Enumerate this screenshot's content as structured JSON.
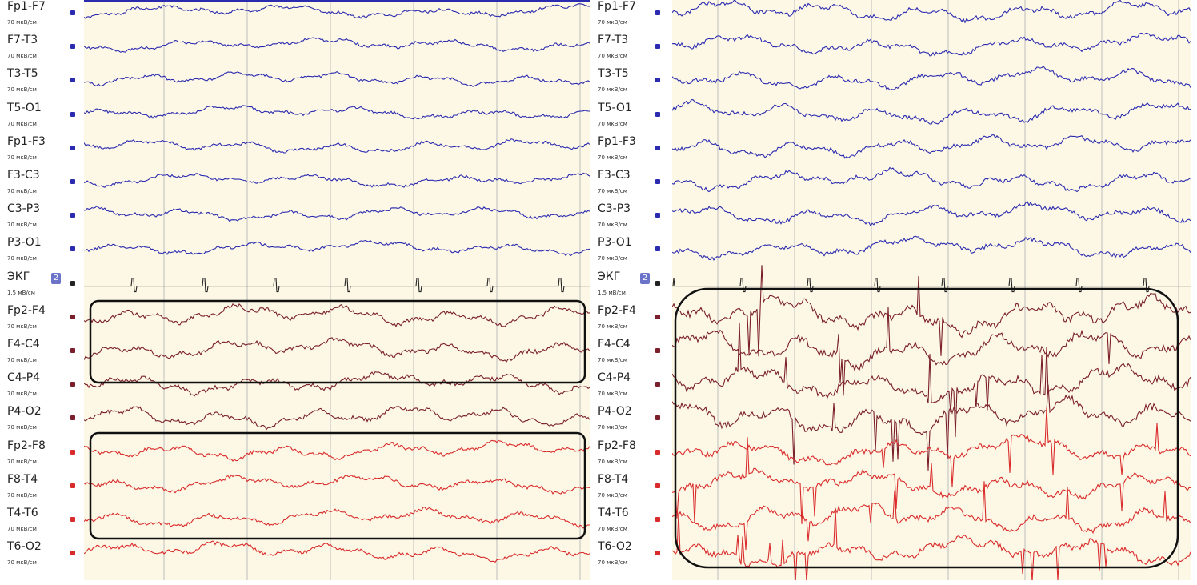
{
  "panels": [
    {
      "id": "left",
      "montage_badge": "2",
      "channels": [
        {
          "name": "Fp1-F7",
          "scale": "70 мкВ/см",
          "group": "left"
        },
        {
          "name": "F7-T3",
          "scale": "70 мкВ/см",
          "group": "left"
        },
        {
          "name": "T3-T5",
          "scale": "70 мкВ/см",
          "group": "left"
        },
        {
          "name": "T5-O1",
          "scale": "70 мкВ/см",
          "group": "left"
        },
        {
          "name": "Fp1-F3",
          "scale": "70 мкВ/см",
          "group": "left"
        },
        {
          "name": "F3-C3",
          "scale": "70 мкВ/см",
          "group": "left"
        },
        {
          "name": "C3-P3",
          "scale": "70 мкВ/см",
          "group": "left"
        },
        {
          "name": "P3-O1",
          "scale": "70 мкВ/см",
          "group": "left"
        },
        {
          "name": "ЭКГ",
          "scale": "1.5 мВ/см",
          "group": "ecg"
        },
        {
          "name": "Fp2-F4",
          "scale": "70 мкВ/см",
          "group": "right-para"
        },
        {
          "name": "F4-C4",
          "scale": "70 мкВ/см",
          "group": "right-para"
        },
        {
          "name": "C4-P4",
          "scale": "70 мкВ/см",
          "group": "right-para"
        },
        {
          "name": "P4-O2",
          "scale": "70 мкВ/см",
          "group": "right-para"
        },
        {
          "name": "Fp2-F8",
          "scale": "70 мкВ/см",
          "group": "right-temp"
        },
        {
          "name": "F8-T4",
          "scale": "70 мкВ/см",
          "group": "right-temp"
        },
        {
          "name": "T4-T6",
          "scale": "70 мкВ/см",
          "group": "right-temp"
        },
        {
          "name": "T6-O2",
          "scale": "70 мкВ/см",
          "group": "right-temp"
        }
      ]
    },
    {
      "id": "right",
      "montage_badge": "2",
      "channels": [
        {
          "name": "Fp1-F7",
          "scale": "70 мкВ/см",
          "group": "left"
        },
        {
          "name": "F7-T3",
          "scale": "70 мкВ/см",
          "group": "left"
        },
        {
          "name": "T3-T5",
          "scale": "70 мкВ/см",
          "group": "left"
        },
        {
          "name": "T5-O1",
          "scale": "70 мкВ/см",
          "group": "left"
        },
        {
          "name": "Fp1-F3",
          "scale": "70 мкВ/см",
          "group": "left"
        },
        {
          "name": "F3-C3",
          "scale": "70 мкВ/см",
          "group": "left"
        },
        {
          "name": "C3-P3",
          "scale": "70 мкВ/см",
          "group": "left"
        },
        {
          "name": "P3-O1",
          "scale": "70 мкВ/см",
          "group": "left"
        },
        {
          "name": "ЭКГ",
          "scale": "1.5 мВ/см",
          "group": "ecg"
        },
        {
          "name": "Fp2-F4",
          "scale": "70 мкВ/см",
          "group": "right-para"
        },
        {
          "name": "F4-C4",
          "scale": "70 мкВ/см",
          "group": "right-para"
        },
        {
          "name": "C4-P4",
          "scale": "70 мкВ/см",
          "group": "right-para"
        },
        {
          "name": "P4-O2",
          "scale": "70 мкВ/см",
          "group": "right-para"
        },
        {
          "name": "Fp2-F8",
          "scale": "70 мкВ/см",
          "group": "right-temp"
        },
        {
          "name": "F8-T4",
          "scale": "70 мкВ/см",
          "group": "right-temp"
        },
        {
          "name": "T4-T6",
          "scale": "70 мкВ/см",
          "group": "right-temp"
        },
        {
          "name": "T6-O2",
          "scale": "70 мкВ/см",
          "group": "right-temp"
        }
      ]
    }
  ],
  "colors": {
    "background": "#fdf8e6",
    "grid": "#bdbdbd",
    "left": "#2b2bb0",
    "ecg": "#222222",
    "right-para": "#7a1f2b",
    "right-temp": "#d92b2b",
    "box": "#111111"
  }
}
